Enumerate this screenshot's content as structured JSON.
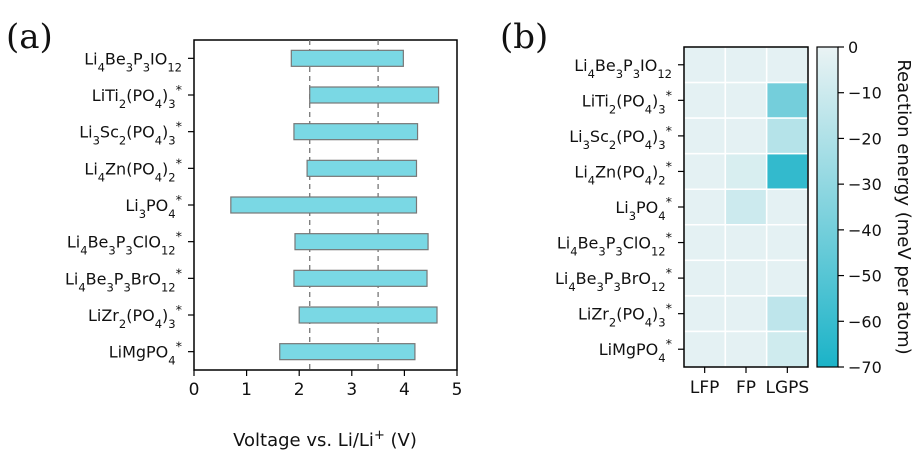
{
  "panels": {
    "a": "(a)",
    "b": "(b)"
  },
  "materials": [
    {
      "base": [
        [
          "Li",
          ""
        ],
        [
          "4",
          "sub"
        ],
        [
          "Be",
          ""
        ],
        [
          "3",
          "sub"
        ],
        [
          "P",
          ""
        ],
        [
          "3",
          "sub"
        ],
        [
          "IO",
          ""
        ],
        [
          "12",
          "sub"
        ]
      ],
      "star": false
    },
    {
      "base": [
        [
          "LiTi",
          ""
        ],
        [
          "2",
          "sub"
        ],
        [
          "(PO",
          ""
        ],
        [
          "4",
          "sub"
        ],
        [
          ")",
          ""
        ],
        [
          "3",
          "sub"
        ]
      ],
      "star": true
    },
    {
      "base": [
        [
          "Li",
          ""
        ],
        [
          "3",
          "sub"
        ],
        [
          "Sc",
          ""
        ],
        [
          "2",
          "sub"
        ],
        [
          "(PO",
          ""
        ],
        [
          "4",
          "sub"
        ],
        [
          ")",
          ""
        ],
        [
          "3",
          "sub"
        ]
      ],
      "star": true
    },
    {
      "base": [
        [
          "Li",
          ""
        ],
        [
          "4",
          "sub"
        ],
        [
          "Zn(PO",
          ""
        ],
        [
          "4",
          "sub"
        ],
        [
          ")",
          ""
        ],
        [
          "2",
          "sub"
        ]
      ],
      "star": true
    },
    {
      "base": [
        [
          "Li",
          ""
        ],
        [
          "3",
          "sub"
        ],
        [
          "PO",
          ""
        ],
        [
          "4",
          "sub"
        ]
      ],
      "star": true
    },
    {
      "base": [
        [
          "Li",
          ""
        ],
        [
          "4",
          "sub"
        ],
        [
          "Be",
          ""
        ],
        [
          "3",
          "sub"
        ],
        [
          "P",
          ""
        ],
        [
          "3",
          "sub"
        ],
        [
          "ClO",
          ""
        ],
        [
          "12",
          "sub"
        ]
      ],
      "star": true
    },
    {
      "base": [
        [
          "Li",
          ""
        ],
        [
          "4",
          "sub"
        ],
        [
          "Be",
          ""
        ],
        [
          "3",
          "sub"
        ],
        [
          "P",
          ""
        ],
        [
          "3",
          "sub"
        ],
        [
          "BrO",
          ""
        ],
        [
          "12",
          "sub"
        ]
      ],
      "star": true
    },
    {
      "base": [
        [
          "LiZr",
          ""
        ],
        [
          "2",
          "sub"
        ],
        [
          "(PO",
          ""
        ],
        [
          "4",
          "sub"
        ],
        [
          ")",
          ""
        ],
        [
          "3",
          "sub"
        ]
      ],
      "star": true
    },
    {
      "base": [
        [
          "LiMgPO",
          ""
        ],
        [
          "4",
          "sub"
        ]
      ],
      "star": true
    }
  ],
  "chart_data": [
    {
      "type": "bar",
      "orientation": "horizontal-range",
      "xlabel_parts": [
        [
          "Voltage vs. Li/Li",
          ""
        ],
        [
          "+",
          "sup"
        ],
        [
          " (V)",
          ""
        ]
      ],
      "xlim": [
        0,
        5
      ],
      "xticks": [
        0,
        1,
        2,
        3,
        4,
        5
      ],
      "reference_lines": [
        2.2,
        3.5
      ],
      "ranges": [
        [
          1.85,
          3.98
        ],
        [
          2.2,
          4.65
        ],
        [
          1.9,
          4.25
        ],
        [
          2.15,
          4.23
        ],
        [
          0.7,
          4.23
        ],
        [
          1.92,
          4.45
        ],
        [
          1.9,
          4.43
        ],
        [
          2.0,
          4.62
        ],
        [
          1.63,
          4.2
        ]
      ],
      "bar_color": "#7ad8e4",
      "bar_edge": "#777777"
    },
    {
      "type": "heatmap",
      "columns": [
        "LFP",
        "FP",
        "LGPS"
      ],
      "values": [
        [
          -2,
          -2,
          -2
        ],
        [
          -2,
          -2,
          -40
        ],
        [
          -2,
          -2,
          -18
        ],
        [
          -2,
          -6,
          -62
        ],
        [
          -2,
          -10,
          -2
        ],
        [
          -2,
          -2,
          -2
        ],
        [
          -2,
          -2,
          -2
        ],
        [
          -2,
          -2,
          -15
        ],
        [
          -2,
          -2,
          -9
        ]
      ],
      "colorbar": {
        "label": "Reaction energy (meV per atom)",
        "range": [
          -70,
          0
        ],
        "ticks": [
          0,
          -10,
          -20,
          -30,
          -40,
          -50,
          -60,
          -70
        ],
        "tick_labels": [
          "0",
          "−10",
          "−20",
          "−30",
          "−40",
          "−50",
          "−60",
          "−70"
        ],
        "color_low": "#1bb3c8",
        "color_high": "#eaf3f4"
      }
    }
  ]
}
